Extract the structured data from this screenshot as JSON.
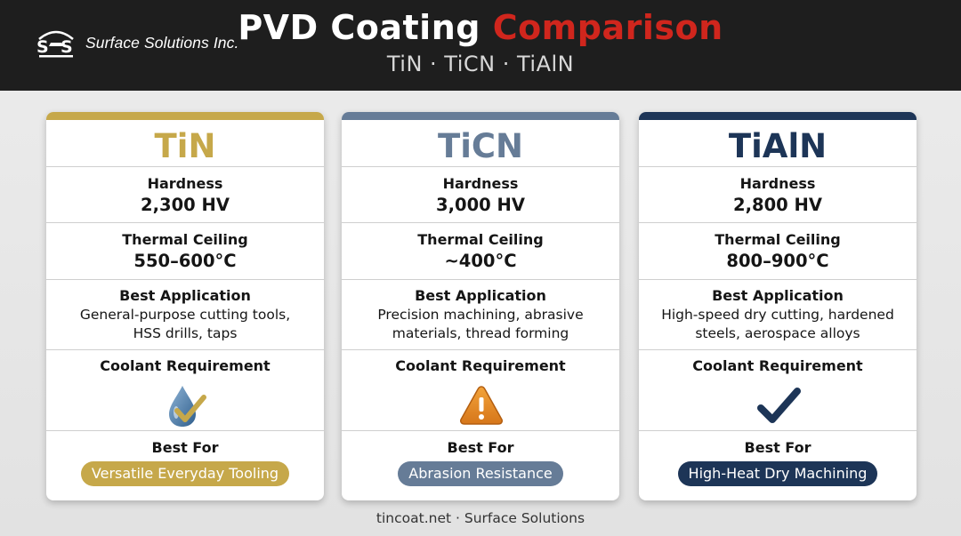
{
  "header": {
    "brand": "Surface Solutions Inc.",
    "title_main": "PVD Coating",
    "title_accent": "Comparison",
    "subtitle": "TiN · TiCN · TiAlN"
  },
  "labels": {
    "hardness": "Hardness",
    "thermal": "Thermal Ceiling",
    "application": "Best Application",
    "coolant": "Coolant Requirement",
    "best_for": "Best For"
  },
  "cards": [
    {
      "name": "TiN",
      "color": "#c6a84a",
      "hardness": "2,300 HV",
      "thermal": "550–600°C",
      "application_line1": "General-purpose cutting tools,",
      "application_line2": "HSS drills, taps",
      "coolant_icon": "droplet-check-icon",
      "best_for": "Versatile Everyday Tooling"
    },
    {
      "name": "TiCN",
      "color": "#667c97",
      "hardness": "3,000 HV",
      "thermal": "~400°C",
      "application_line1": "Precision machining, abrasive",
      "application_line2": "materials, thread forming",
      "coolant_icon": "warning-triangle-icon",
      "best_for": "Abrasion Resistance"
    },
    {
      "name": "TiAlN",
      "color": "#1d3557",
      "hardness": "2,800 HV",
      "thermal": "800–900°C",
      "application_line1": "High-speed dry cutting, hardened",
      "application_line2": "steels, aerospace alloys",
      "coolant_icon": "checkmark-icon",
      "best_for": "High-Heat Dry Machining"
    }
  ],
  "footer": "tincoat.net · Surface Solutions"
}
